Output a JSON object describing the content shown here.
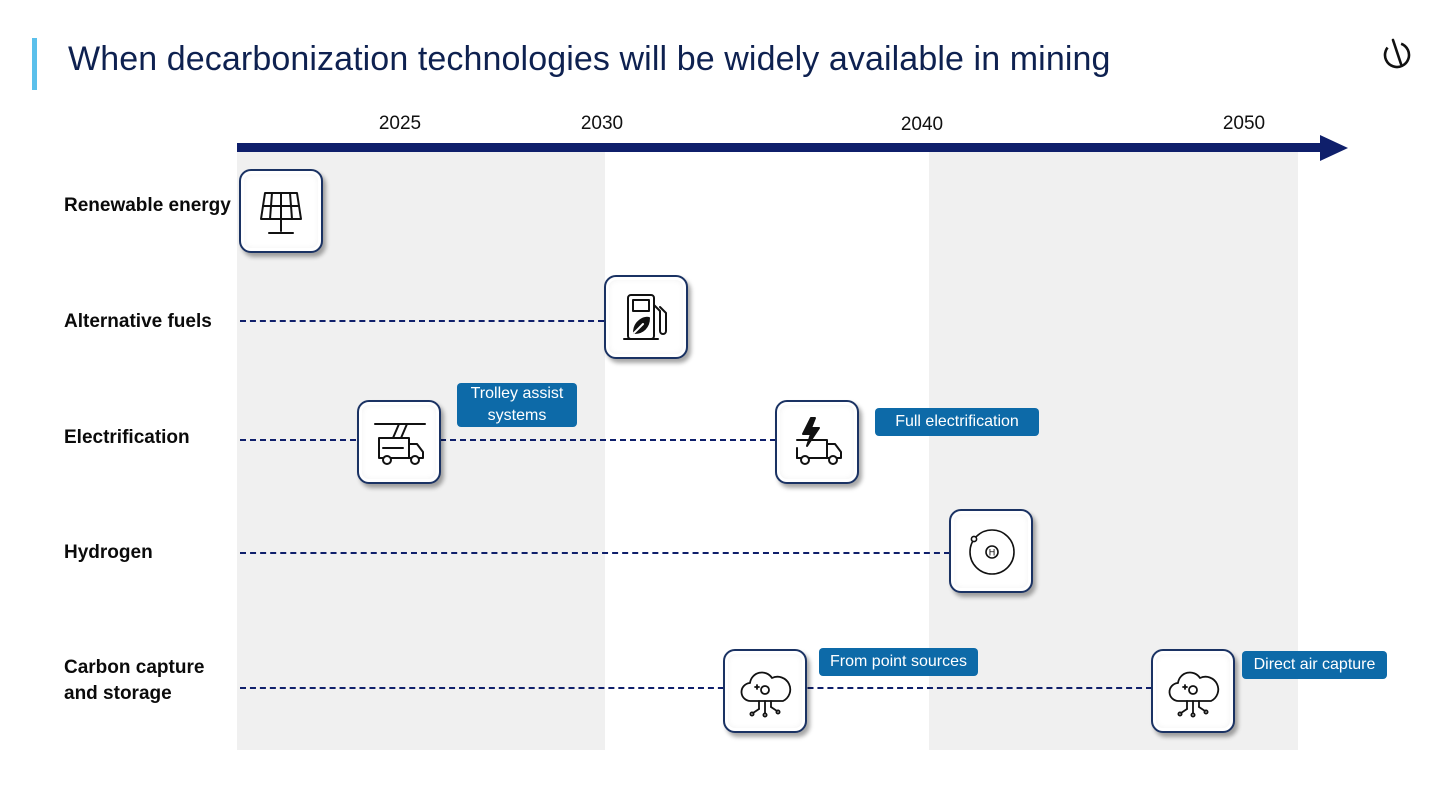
{
  "title": "When decarbonization technologies will be widely available in mining",
  "colors": {
    "axis": "#0f1f6b",
    "accent": "#5bc0eb",
    "callout": "#0d6aa8",
    "band": "#f0f0f0"
  },
  "timeline": {
    "years": [
      "2025",
      "2030",
      "2040",
      "2050"
    ]
  },
  "rows": [
    {
      "label": "Renewable energy",
      "icon": "solar-panel-icon"
    },
    {
      "label": "Alternative fuels",
      "icon": "fuel-pump-leaf-icon"
    },
    {
      "label": "Electrification",
      "icons": [
        "trolley-truck-icon",
        "electric-truck-icon"
      ],
      "callouts": [
        "Trolley assist systems",
        "Full electrification"
      ]
    },
    {
      "label": "Hydrogen",
      "icon": "hydrogen-atom-icon"
    },
    {
      "label_line1": "Carbon capture",
      "label_line2": "and storage",
      "icons": [
        "carbon-capture-cloud-icon",
        "carbon-capture-cloud-icon"
      ],
      "callouts": [
        "From point sources",
        "Direct air capture"
      ]
    }
  ],
  "callout_lines": {
    "trolley_1": "Trolley assist",
    "trolley_2": "systems"
  }
}
